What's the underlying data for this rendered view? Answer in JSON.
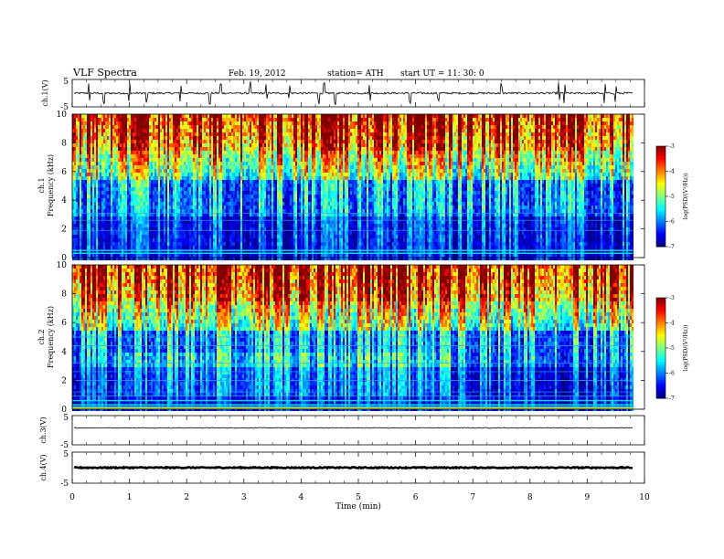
{
  "header": {
    "title": "VLF  Spectra",
    "date": "Feb. 19, 2012",
    "station": "station= ATH",
    "start": "start  UT  =    11: 30: 0"
  },
  "chart_data": [
    {
      "type": "line",
      "panel": "ch1-waveform",
      "ylabel": "ch.1(V)",
      "ylim": [
        -5,
        5
      ],
      "yticks": [
        "5",
        "-5"
      ],
      "xlim": [
        0,
        10
      ],
      "baseline_v": 0.0,
      "spike_times_min": [
        0.3,
        0.55,
        1.0,
        1.3,
        1.9,
        2.4,
        2.6,
        3.1,
        3.4,
        3.8,
        4.3,
        4.4,
        4.6,
        5.2,
        5.9,
        6.4,
        7.5,
        8.5,
        8.6,
        9.3,
        9.5
      ]
    },
    {
      "type": "heatmap",
      "panel": "ch1-spectrogram",
      "ylabel": "Frequency  (kHz)",
      "channel_label": "ch.1",
      "ylim": [
        0,
        10
      ],
      "yticks": [
        "0",
        "2",
        "4",
        "6",
        "8",
        "10"
      ],
      "xlim": [
        0,
        10
      ],
      "data_end_min": 9.8,
      "colorbar": {
        "label": "log(PSD/(V²/Hz))",
        "range": [
          -7,
          -3
        ],
        "ticks": [
          "-3",
          "-4",
          "-5",
          "-6",
          "-7"
        ]
      }
    },
    {
      "type": "heatmap",
      "panel": "ch2-spectrogram",
      "ylabel": "Frequency  (kHz)",
      "channel_label": "ch.2",
      "ylim": [
        0,
        10
      ],
      "yticks": [
        "0",
        "2",
        "4",
        "6",
        "8",
        "10"
      ],
      "xlim": [
        0,
        10
      ],
      "data_end_min": 9.8,
      "colorbar": {
        "label": "log(PSD/(V²/Hz))",
        "range": [
          -7,
          -3
        ],
        "ticks": [
          "-3",
          "-4",
          "-5",
          "-6",
          "-7"
        ]
      }
    },
    {
      "type": "line",
      "panel": "ch3-waveform",
      "ylabel": "ch.3(V)",
      "ylim": [
        -5,
        5
      ],
      "yticks": [
        "5",
        "-5"
      ],
      "xlim": [
        0,
        10
      ],
      "baseline_v": 0.8
    },
    {
      "type": "line",
      "panel": "ch4-waveform",
      "ylabel": "ch.4(V)",
      "ylim": [
        -5,
        5
      ],
      "yticks": [
        "5",
        "-5"
      ],
      "xlim": [
        0,
        10
      ],
      "xlabel": "Time  (min)",
      "xticks": [
        "0",
        "1",
        "2",
        "3",
        "4",
        "5",
        "6",
        "7",
        "8",
        "9",
        "10"
      ],
      "baseline_v": 0.0
    }
  ]
}
